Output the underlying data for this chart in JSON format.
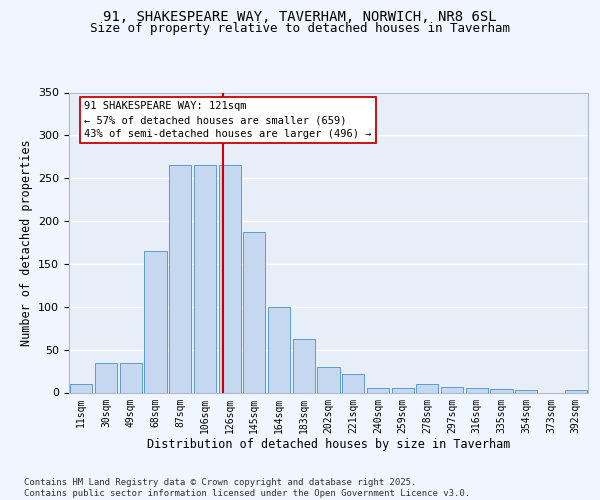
{
  "title_line1": "91, SHAKESPEARE WAY, TAVERHAM, NORWICH, NR8 6SL",
  "title_line2": "Size of property relative to detached houses in Taverham",
  "xlabel": "Distribution of detached houses by size in Taverham",
  "ylabel": "Number of detached properties",
  "categories": [
    "11sqm",
    "30sqm",
    "49sqm",
    "68sqm",
    "87sqm",
    "106sqm",
    "126sqm",
    "145sqm",
    "164sqm",
    "183sqm",
    "202sqm",
    "221sqm",
    "240sqm",
    "259sqm",
    "278sqm",
    "297sqm",
    "316sqm",
    "335sqm",
    "354sqm",
    "373sqm",
    "392sqm"
  ],
  "bar_values": [
    10,
    35,
    35,
    165,
    265,
    265,
    265,
    187,
    100,
    62,
    30,
    22,
    5,
    5,
    10,
    7,
    5,
    4,
    3,
    0,
    3
  ],
  "bar_color": "#c5d8f0",
  "bar_edge_color": "#5b9bd5",
  "vline_color": "#cc0000",
  "annotation_text": "91 SHAKESPEARE WAY: 121sqm\n← 57% of detached houses are smaller (659)\n43% of semi-detached houses are larger (496) →",
  "ylim": [
    0,
    350
  ],
  "yticks": [
    0,
    50,
    100,
    150,
    200,
    250,
    300,
    350
  ],
  "fig_bg": "#f0f5ff",
  "ax_bg": "#e8eef8",
  "grid_color": "#ffffff",
  "footer": "Contains HM Land Registry data © Crown copyright and database right 2025.\nContains public sector information licensed under the Open Government Licence v3.0."
}
